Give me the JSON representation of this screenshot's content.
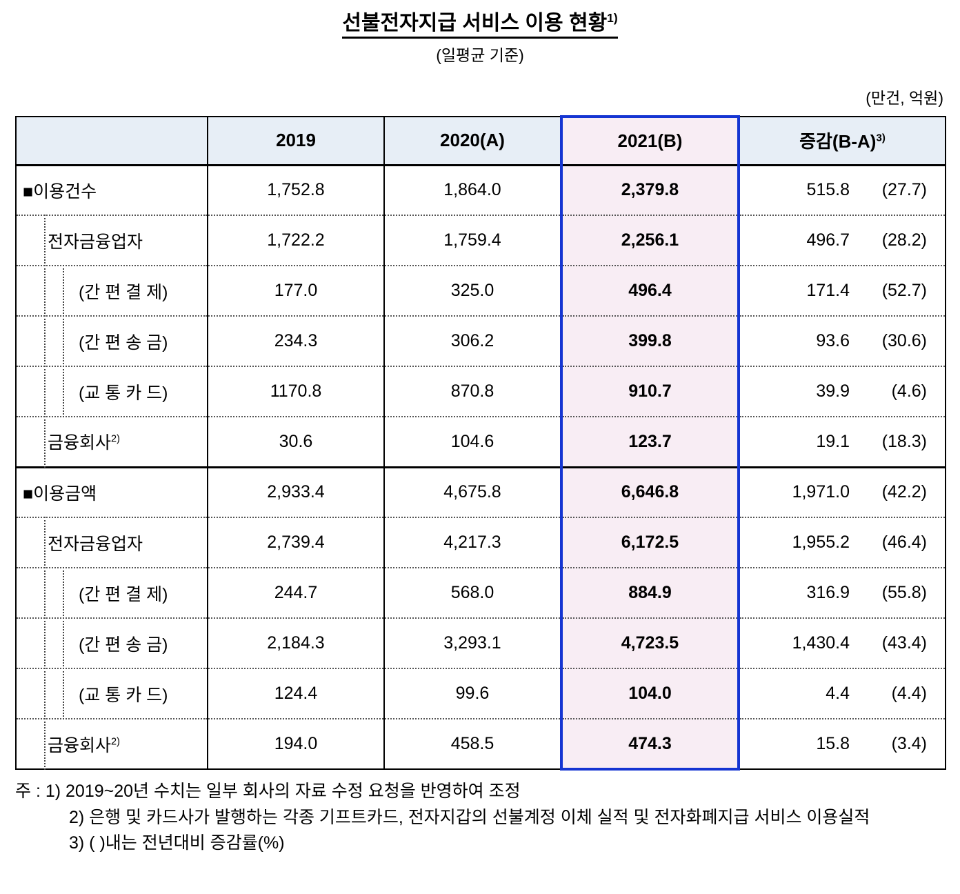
{
  "title": {
    "text": "선불전자지급 서비스 이용 현황",
    "sup": "1)",
    "subtitle": "(일평균 기준)",
    "unit_note": "(만건, 억원)"
  },
  "table": {
    "headers": [
      {
        "label": ""
      },
      {
        "label": "2019"
      },
      {
        "label": "2020(A)"
      },
      {
        "label": "2021(B)"
      },
      {
        "label": "증감(B-A)",
        "sup": "3)"
      }
    ],
    "rows": [
      {
        "label": "■이용건수",
        "sup": "",
        "level": 0,
        "section": true,
        "last": false,
        "v2019": "1,752.8",
        "v2020": "1,864.0",
        "v2021": "2,379.8",
        "diff": "515.8",
        "pct": "(27.7)"
      },
      {
        "label": "전자금융업자",
        "sup": "",
        "level": 1,
        "section": false,
        "last": false,
        "v2019": "1,722.2",
        "v2020": "1,759.4",
        "v2021": "2,256.1",
        "diff": "496.7",
        "pct": "(28.2)"
      },
      {
        "label": "(간 편 결 제)",
        "sup": "",
        "level": 2,
        "section": false,
        "last": false,
        "v2019": "177.0",
        "v2020": "325.0",
        "v2021": "496.4",
        "diff": "171.4",
        "pct": "(52.7)"
      },
      {
        "label": "(간 편 송 금)",
        "sup": "",
        "level": 2,
        "section": false,
        "last": false,
        "v2019": "234.3",
        "v2020": "306.2",
        "v2021": "399.8",
        "diff": "93.6",
        "pct": "(30.6)"
      },
      {
        "label": "(교 통 카 드)",
        "sup": "",
        "level": 2,
        "section": false,
        "last": false,
        "v2019": "1170.8",
        "v2020": "870.8",
        "v2021": "910.7",
        "diff": "39.9",
        "pct": "(4.6)"
      },
      {
        "label": "금융회사",
        "sup": "2)",
        "level": 1,
        "section": false,
        "last": false,
        "v2019": "30.6",
        "v2020": "104.6",
        "v2021": "123.7",
        "diff": "19.1",
        "pct": "(18.3)"
      },
      {
        "label": "■이용금액",
        "sup": "",
        "level": 0,
        "section": true,
        "last": false,
        "v2019": "2,933.4",
        "v2020": "4,675.8",
        "v2021": "6,646.8",
        "diff": "1,971.0",
        "pct": "(42.2)"
      },
      {
        "label": "전자금융업자",
        "sup": "",
        "level": 1,
        "section": false,
        "last": false,
        "v2019": "2,739.4",
        "v2020": "4,217.3",
        "v2021": "6,172.5",
        "diff": "1,955.2",
        "pct": "(46.4)"
      },
      {
        "label": "(간 편 결 제)",
        "sup": "",
        "level": 2,
        "section": false,
        "last": false,
        "v2019": "244.7",
        "v2020": "568.0",
        "v2021": "884.9",
        "diff": "316.9",
        "pct": "(55.8)"
      },
      {
        "label": "(간 편 송 금)",
        "sup": "",
        "level": 2,
        "section": false,
        "last": false,
        "v2019": "2,184.3",
        "v2020": "3,293.1",
        "v2021": "4,723.5",
        "diff": "1,430.4",
        "pct": "(43.4)"
      },
      {
        "label": "(교 통 카 드)",
        "sup": "",
        "level": 2,
        "section": false,
        "last": false,
        "v2019": "124.4",
        "v2020": "99.6",
        "v2021": "104.0",
        "diff": "4.4",
        "pct": "(4.4)"
      },
      {
        "label": "금융회사",
        "sup": "2)",
        "level": 1,
        "section": false,
        "last": true,
        "v2019": "194.0",
        "v2020": "458.5",
        "v2021": "474.3",
        "diff": "15.8",
        "pct": "(3.4)"
      }
    ]
  },
  "footnotes": [
    "주 : 1) 2019~20년 수치는 일부 회사의 자료 수정 요청을 반영하여 조정",
    "2) 은행 및 카드사가 발행하는 각종 기프트카드, 전자지갑의 선불계정 이체 실적 및 전자화폐지급 서비스 이용실적",
    "3) ( )내는 전년대비 증감률(%)"
  ]
}
